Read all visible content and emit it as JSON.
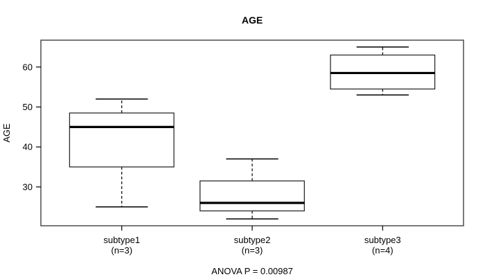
{
  "chart_data": {
    "type": "boxplot",
    "title": "AGE",
    "ylabel": "AGE",
    "footer": "ANOVA P = 0.00987",
    "ylim": [
      20.28,
      66.72
    ],
    "yticks": [
      30,
      40,
      50,
      60
    ],
    "grid": false,
    "legend": null,
    "groups": [
      {
        "label": "subtype1",
        "sublabel": "(n=3)",
        "n": 3,
        "whisker_low": 25,
        "q1": 35,
        "median": 45,
        "q3": 48.5,
        "whisker_high": 52,
        "outliers": []
      },
      {
        "label": "subtype2",
        "sublabel": "(n=3)",
        "n": 3,
        "whisker_low": 22,
        "q1": 24,
        "median": 26,
        "q3": 31.5,
        "whisker_high": 37,
        "outliers": []
      },
      {
        "label": "subtype3",
        "sublabel": "(n=4)",
        "n": 4,
        "whisker_low": 53,
        "q1": 54.5,
        "median": 58.5,
        "q3": 63,
        "whisker_high": 65,
        "outliers": []
      }
    ]
  },
  "colors": {
    "background": "#ffffff",
    "plot_border": "#4d4d4d",
    "box_stroke": "#2b2b2b",
    "box_fill": "#ffffff",
    "median_stroke": "#000000",
    "whisker_stroke": "#000000",
    "text": "#000000"
  }
}
